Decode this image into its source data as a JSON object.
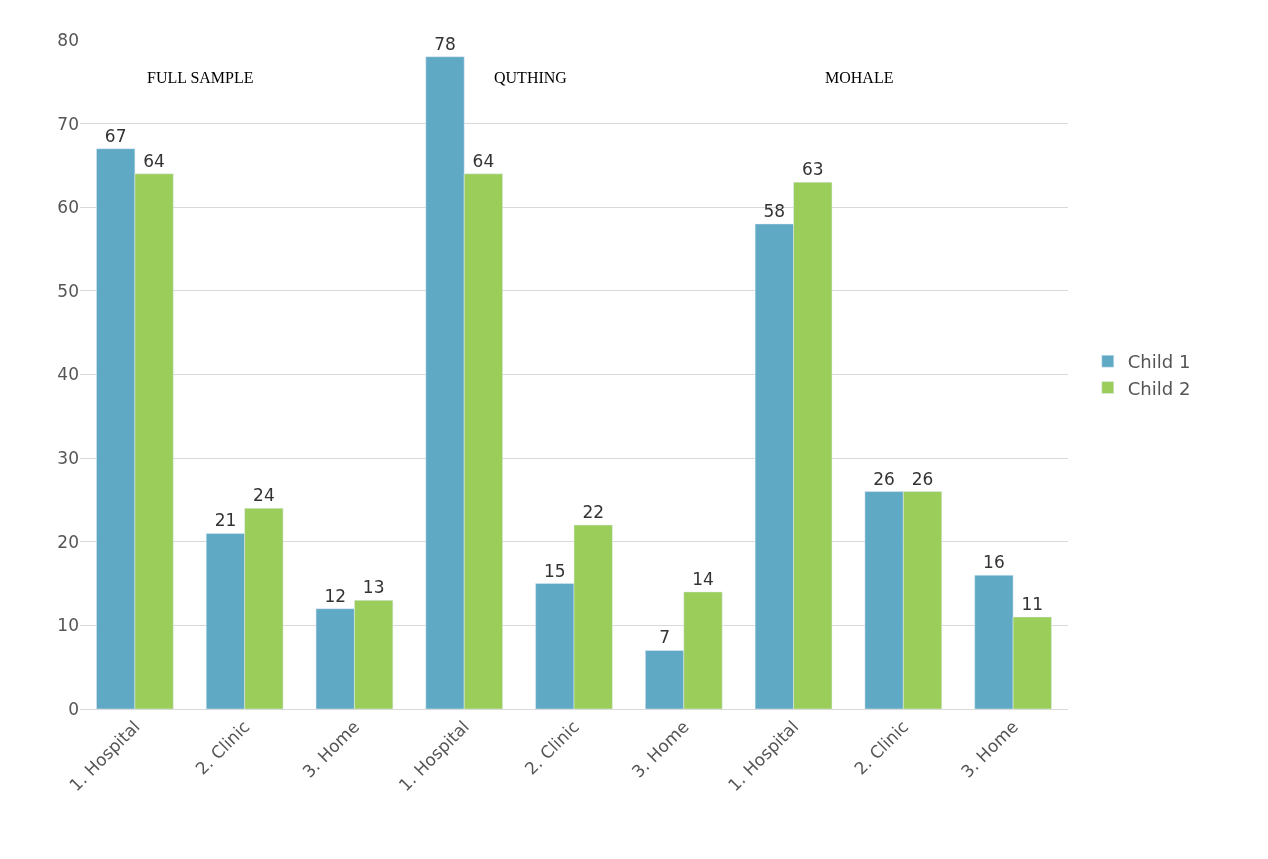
{
  "chart_data": {
    "type": "bar",
    "categories": [
      "1. Hospital",
      "2. Clinic",
      "3. Home",
      "1. Hospital",
      "2. Clinic",
      "3. Home",
      "1. Hospital",
      "2. Clinic",
      "3. Home"
    ],
    "series": [
      {
        "name": "Child 1",
        "color": "#5fa9c5",
        "values": [
          67,
          21,
          12,
          78,
          15,
          7,
          58,
          26,
          16
        ]
      },
      {
        "name": "Child 2",
        "color": "#9acd5a",
        "values": [
          64,
          24,
          13,
          64,
          22,
          14,
          63,
          26,
          11
        ]
      }
    ],
    "annotations": [
      "FULL SAMPLE",
      "QUTHING",
      "MOHALE"
    ],
    "ylim": [
      0,
      80
    ],
    "yticks": [
      0,
      10,
      20,
      30,
      40,
      50,
      60,
      70,
      80
    ],
    "grid": "y",
    "legend": "right",
    "data_labels": true
  }
}
